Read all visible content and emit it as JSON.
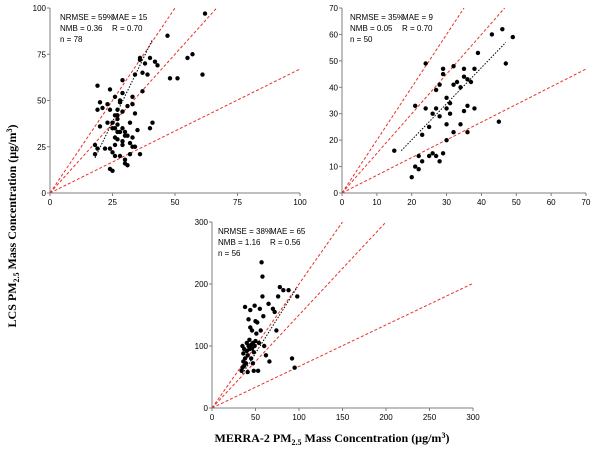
{
  "figure": {
    "ylabel_main": "LCS PM",
    "ylabel_sub": "2.5",
    "ylabel_tail": " Mass Concentration (µg/m",
    "ylabel_sup": "3",
    "ylabel_end": ")",
    "xlabel_main": "MERRA-2 PM",
    "xlabel_sub": "2.5",
    "xlabel_tail": " Mass Concentration (µg/m",
    "xlabel_sup": "3",
    "xlabel_end": ")"
  },
  "colors": {
    "points": "#000000",
    "reference_lines": "#e8312b",
    "fit_line": "#000000",
    "axis": "#7f7f7f"
  },
  "chart_data": [
    {
      "type": "scatter",
      "title": "",
      "xlim": [
        0,
        100
      ],
      "ylim": [
        0,
        100
      ],
      "xticks": [
        0,
        25,
        50,
        75,
        100
      ],
      "yticks": [
        0,
        25,
        50,
        75,
        100
      ],
      "stats": {
        "nrmse": "NRMSE = 59%",
        "mae": "MAE = 15",
        "nmb": "NMB = 0.36",
        "r": "R = 0.70",
        "n": "n = 78"
      },
      "reference_slopes": [
        2,
        1.5,
        0.67
      ],
      "fit_line": {
        "x": [
          18,
          41
        ],
        "y": [
          19,
          83
        ]
      },
      "points": [
        [
          18,
          26
        ],
        [
          18,
          21
        ],
        [
          19,
          24
        ],
        [
          19,
          58
        ],
        [
          19,
          45
        ],
        [
          20,
          49
        ],
        [
          20,
          36
        ],
        [
          21,
          46
        ],
        [
          22,
          24
        ],
        [
          23,
          38
        ],
        [
          23,
          48
        ],
        [
          24,
          24
        ],
        [
          24,
          56
        ],
        [
          24,
          45
        ],
        [
          24,
          13
        ],
        [
          25,
          12
        ],
        [
          25,
          22
        ],
        [
          25,
          35
        ],
        [
          25,
          38
        ],
        [
          26,
          35
        ],
        [
          26,
          30
        ],
        [
          26,
          42
        ],
        [
          26,
          52
        ],
        [
          26,
          26
        ],
        [
          26,
          20
        ],
        [
          27,
          37
        ],
        [
          27,
          33
        ],
        [
          27,
          40
        ],
        [
          27,
          45
        ],
        [
          27,
          29
        ],
        [
          27,
          42
        ],
        [
          28,
          50
        ],
        [
          28,
          20
        ],
        [
          28,
          33
        ],
        [
          28,
          49
        ],
        [
          29,
          35
        ],
        [
          29,
          28
        ],
        [
          29,
          44
        ],
        [
          29,
          61
        ],
        [
          29,
          54
        ],
        [
          29,
          26
        ],
        [
          30,
          33
        ],
        [
          30,
          18
        ],
        [
          30,
          16
        ],
        [
          30,
          31
        ],
        [
          31,
          47
        ],
        [
          31,
          15
        ],
        [
          31,
          31
        ],
        [
          32,
          27
        ],
        [
          32,
          38
        ],
        [
          32,
          21
        ],
        [
          33,
          52
        ],
        [
          33,
          48
        ],
        [
          33,
          30
        ],
        [
          33,
          25
        ],
        [
          34,
          25
        ],
        [
          34,
          64
        ],
        [
          34,
          43
        ],
        [
          35,
          34
        ],
        [
          36,
          72
        ],
        [
          36,
          21
        ],
        [
          36,
          73
        ],
        [
          37,
          65
        ],
        [
          37,
          55
        ],
        [
          38,
          70
        ],
        [
          39,
          64
        ],
        [
          40,
          73
        ],
        [
          40,
          35
        ],
        [
          41,
          38
        ],
        [
          42,
          71
        ],
        [
          43,
          69
        ],
        [
          47,
          85
        ],
        [
          48,
          62
        ],
        [
          51,
          62
        ],
        [
          55,
          73
        ],
        [
          57,
          75
        ],
        [
          61,
          64
        ],
        [
          62,
          97
        ]
      ]
    },
    {
      "type": "scatter",
      "title": "",
      "xlim": [
        0,
        70
      ],
      "ylim": [
        0,
        70
      ],
      "xticks": [
        0,
        10,
        20,
        30,
        40,
        50,
        60,
        70
      ],
      "yticks": [
        0,
        10,
        20,
        30,
        40,
        50,
        60,
        70
      ],
      "stats": {
        "nrmse": "NRMSE = 35%",
        "mae": "MAE = 9",
        "nmb": "NMB = 0.05",
        "r": "R = 0.70",
        "n": "n = 50"
      },
      "reference_slopes": [
        2,
        1.5,
        0.67
      ],
      "fit_line": {
        "x": [
          17,
          47
        ],
        "y": [
          16,
          57
        ]
      },
      "points": [
        [
          15,
          16
        ],
        [
          20,
          6
        ],
        [
          21,
          10
        ],
        [
          21,
          33
        ],
        [
          22,
          14
        ],
        [
          22,
          9
        ],
        [
          23,
          22
        ],
        [
          23,
          12
        ],
        [
          24,
          49
        ],
        [
          24,
          32
        ],
        [
          25,
          25
        ],
        [
          25,
          14
        ],
        [
          26,
          30
        ],
        [
          26,
          15
        ],
        [
          27,
          32
        ],
        [
          27,
          39
        ],
        [
          27,
          14
        ],
        [
          28,
          29
        ],
        [
          28,
          41
        ],
        [
          28,
          12
        ],
        [
          29,
          15
        ],
        [
          29,
          45
        ],
        [
          29,
          47
        ],
        [
          30,
          32
        ],
        [
          30,
          26
        ],
        [
          30,
          20
        ],
        [
          30,
          36
        ],
        [
          31,
          30
        ],
        [
          31,
          34
        ],
        [
          32,
          48
        ],
        [
          32,
          41
        ],
        [
          32,
          23
        ],
        [
          33,
          42
        ],
        [
          34,
          26
        ],
        [
          34,
          40
        ],
        [
          35,
          47
        ],
        [
          35,
          44
        ],
        [
          35,
          31
        ],
        [
          36,
          43
        ],
        [
          36,
          33
        ],
        [
          36,
          23
        ],
        [
          37,
          42
        ],
        [
          38,
          47
        ],
        [
          38,
          32
        ],
        [
          39,
          53
        ],
        [
          43,
          60
        ],
        [
          45,
          27
        ],
        [
          46,
          62
        ],
        [
          47,
          49
        ],
        [
          49,
          59
        ]
      ]
    },
    {
      "type": "scatter",
      "title": "",
      "xlim": [
        0,
        300
      ],
      "ylim": [
        0,
        300
      ],
      "xticks": [
        0,
        50,
        100,
        150,
        200,
        250,
        300
      ],
      "yticks": [
        0,
        100,
        200,
        300
      ],
      "stats": {
        "nrmse": "NRMSE = 38%",
        "mae": "MAE = 65",
        "nmb": "NMB = 1.16",
        "r": "R = 0.56",
        "n": "n = 56"
      },
      "reference_slopes": [
        2,
        1.5,
        0.67
      ],
      "fit_line": {
        "x": [
          35,
          98
        ],
        "y": [
          55,
          195
        ]
      },
      "points": [
        [
          34,
          60
        ],
        [
          35,
          65
        ],
        [
          35,
          100
        ],
        [
          36,
          88
        ],
        [
          36,
          75
        ],
        [
          37,
          95
        ],
        [
          37,
          68
        ],
        [
          38,
          80
        ],
        [
          38,
          163
        ],
        [
          39,
          72
        ],
        [
          40,
          105
        ],
        [
          40,
          92
        ],
        [
          41,
          85
        ],
        [
          41,
          58
        ],
        [
          42,
          100
        ],
        [
          42,
          143
        ],
        [
          43,
          95
        ],
        [
          43,
          110
        ],
        [
          44,
          158
        ],
        [
          44,
          130
        ],
        [
          45,
          80
        ],
        [
          45,
          102
        ],
        [
          46,
          96
        ],
        [
          46,
          125
        ],
        [
          47,
          105
        ],
        [
          47,
          72
        ],
        [
          48,
          90
        ],
        [
          48,
          60
        ],
        [
          49,
          100
        ],
        [
          49,
          165
        ],
        [
          50,
          108
        ],
        [
          50,
          140
        ],
        [
          51,
          120
        ],
        [
          52,
          138
        ],
        [
          53,
          60
        ],
        [
          54,
          105
        ],
        [
          55,
          160
        ],
        [
          56,
          125
        ],
        [
          57,
          235
        ],
        [
          58,
          180
        ],
        [
          58,
          212
        ],
        [
          59,
          148
        ],
        [
          60,
          100
        ],
        [
          62,
          85
        ],
        [
          65,
          168
        ],
        [
          66,
          75
        ],
        [
          70,
          160
        ],
        [
          72,
          155
        ],
        [
          74,
          125
        ],
        [
          76,
          180
        ],
        [
          78,
          195
        ],
        [
          82,
          190
        ],
        [
          88,
          190
        ],
        [
          92,
          80
        ],
        [
          95,
          65
        ],
        [
          98,
          180
        ]
      ]
    }
  ]
}
